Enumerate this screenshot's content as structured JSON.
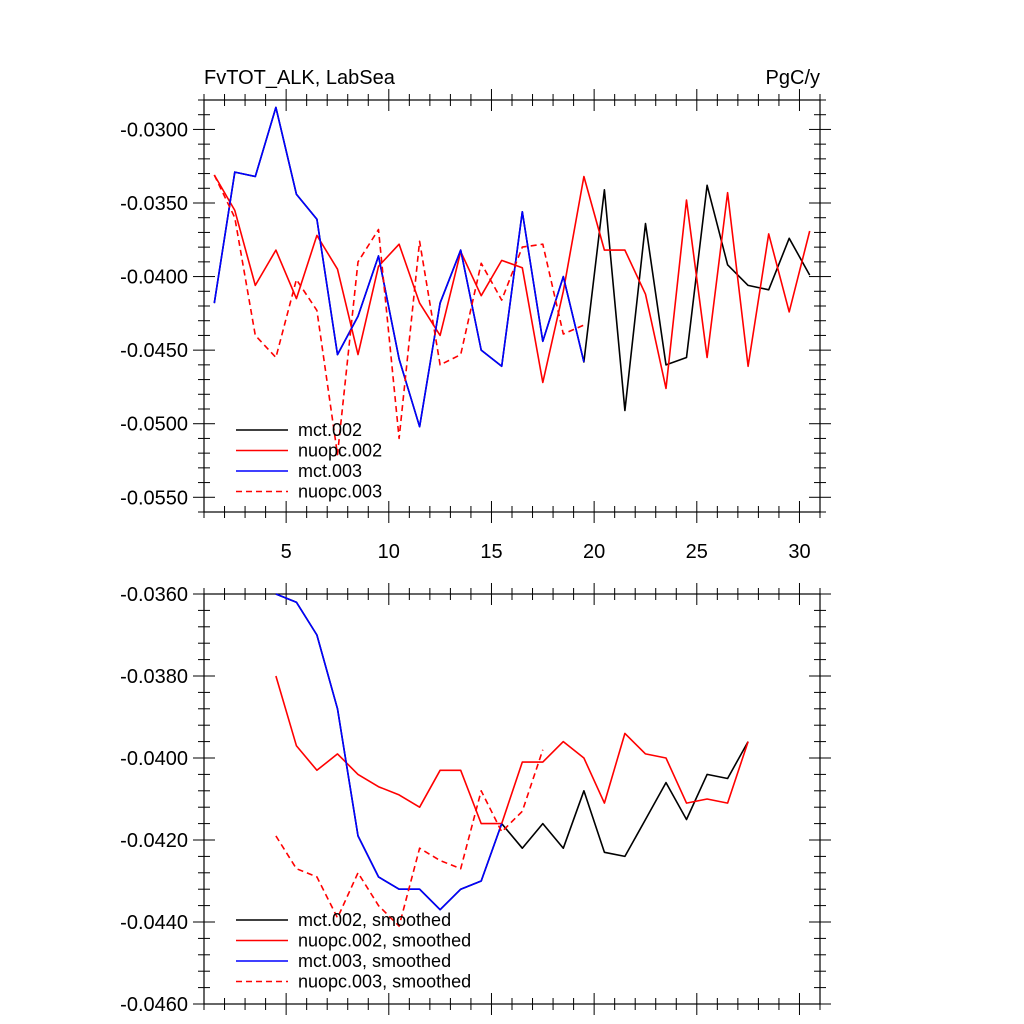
{
  "chart_data": [
    {
      "type": "line",
      "title_left": "FvTOT_ALK, LabSea",
      "title_right": "PgC/y",
      "xlim": [
        1,
        31
      ],
      "ylim": [
        -0.056,
        -0.028
      ],
      "xticks": [
        5,
        10,
        15,
        20,
        25,
        30
      ],
      "xtick_labels": [
        "5",
        "10",
        "15",
        "20",
        "25",
        "30"
      ],
      "show_x_labels": true,
      "yticks": [
        -0.03,
        -0.035,
        -0.04,
        -0.045,
        -0.05,
        -0.055
      ],
      "ytick_labels": [
        "-0.0300",
        "-0.0350",
        "-0.0400",
        "-0.0450",
        "-0.0500",
        "-0.0550"
      ],
      "legend_location": "bottom-left",
      "series": [
        {
          "name": "mct.002",
          "color": "#000000",
          "dash": "solid",
          "x": [
            1.5,
            2.5,
            3.5,
            4.5,
            5.5,
            6.5,
            7.5,
            8.5,
            9.5,
            10.5,
            11.5,
            12.5,
            13.5,
            14.5,
            15.5,
            16.5,
            17.5,
            18.5,
            19.5,
            20.5,
            21.5,
            22.5,
            23.5,
            24.5,
            25.5,
            26.5,
            27.5,
            28.5,
            29.5,
            30.5
          ],
          "values": [
            -0.0418,
            -0.0329,
            -0.0332,
            -0.0285,
            -0.0344,
            -0.0361,
            -0.0453,
            -0.0427,
            -0.0386,
            -0.0456,
            -0.0502,
            -0.0418,
            -0.0382,
            -0.045,
            -0.0461,
            -0.0356,
            -0.0444,
            -0.04,
            -0.0458,
            -0.0341,
            -0.0491,
            -0.0364,
            -0.046,
            -0.0455,
            -0.0338,
            -0.0392,
            -0.0406,
            -0.0409,
            -0.0374,
            -0.0399
          ]
        },
        {
          "name": "nuopc.002",
          "color": "#ff0000",
          "dash": "solid",
          "x": [
            1.5,
            2.5,
            3.5,
            4.5,
            5.5,
            6.5,
            7.5,
            8.5,
            9.5,
            10.5,
            11.5,
            12.5,
            13.5,
            14.5,
            15.5,
            16.5,
            17.5,
            18.5,
            19.5,
            20.5,
            21.5,
            22.5,
            23.5,
            24.5,
            25.5,
            26.5,
            27.5,
            28.5,
            29.5,
            30.5
          ],
          "values": [
            -0.0331,
            -0.0355,
            -0.0406,
            -0.0382,
            -0.0415,
            -0.0372,
            -0.0395,
            -0.0453,
            -0.0393,
            -0.0378,
            -0.0418,
            -0.044,
            -0.0383,
            -0.0413,
            -0.0389,
            -0.0394,
            -0.0472,
            -0.041,
            -0.0332,
            -0.0382,
            -0.0382,
            -0.0412,
            -0.0476,
            -0.0348,
            -0.0455,
            -0.0343,
            -0.0461,
            -0.0371,
            -0.0424,
            -0.0369
          ]
        },
        {
          "name": "mct.003",
          "color": "#0000ff",
          "dash": "solid",
          "x": [
            1.5,
            2.5,
            3.5,
            4.5,
            5.5,
            6.5,
            7.5,
            8.5,
            9.5,
            10.5,
            11.5,
            12.5,
            13.5,
            14.5,
            15.5,
            16.5,
            17.5,
            18.5,
            19.5
          ],
          "values": [
            -0.0418,
            -0.0329,
            -0.0332,
            -0.0285,
            -0.0344,
            -0.0361,
            -0.0453,
            -0.0427,
            -0.0386,
            -0.0456,
            -0.0502,
            -0.0418,
            -0.0382,
            -0.045,
            -0.0461,
            -0.0356,
            -0.0444,
            -0.04,
            -0.0458
          ]
        },
        {
          "name": "nuopc.003",
          "color": "#ff0000",
          "dash": "dashed",
          "x": [
            1.5,
            2.5,
            3.5,
            4.5,
            5.5,
            6.5,
            7.5,
            8.5,
            9.5,
            10.5,
            11.5,
            12.5,
            13.5,
            14.5,
            15.5,
            16.5,
            17.5,
            18.5,
            19.5
          ],
          "values": [
            -0.0331,
            -0.036,
            -0.044,
            -0.0455,
            -0.0402,
            -0.0423,
            -0.0521,
            -0.039,
            -0.0368,
            -0.051,
            -0.0376,
            -0.046,
            -0.0453,
            -0.0391,
            -0.0416,
            -0.038,
            -0.0378,
            -0.0439,
            -0.0433
          ]
        }
      ]
    },
    {
      "type": "line",
      "xlim": [
        1,
        31
      ],
      "ylim": [
        -0.046,
        -0.036
      ],
      "xticks": [
        5,
        10,
        15,
        20,
        25,
        30
      ],
      "show_x_labels": false,
      "yticks": [
        -0.036,
        -0.038,
        -0.04,
        -0.042,
        -0.044,
        -0.046
      ],
      "ytick_labels": [
        "-0.0360",
        "-0.0380",
        "-0.0400",
        "-0.0420",
        "-0.0440",
        "-0.0460"
      ],
      "legend_location": "bottom-left",
      "series": [
        {
          "name": "mct.002, smoothed",
          "color": "#000000",
          "dash": "solid",
          "x": [
            4.5,
            5.5,
            6.5,
            7.5,
            8.5,
            9.5,
            10.5,
            11.5,
            12.5,
            13.5,
            14.5,
            15.5,
            16.5,
            17.5,
            18.5,
            19.5,
            20.5,
            21.5,
            22.5,
            23.5,
            24.5,
            25.5,
            26.5,
            27.5
          ],
          "values": [
            -0.036,
            -0.0362,
            -0.037,
            -0.0388,
            -0.0419,
            -0.0429,
            -0.0432,
            -0.0432,
            -0.0437,
            -0.0432,
            -0.043,
            -0.0416,
            -0.0422,
            -0.0416,
            -0.0422,
            -0.0408,
            -0.0423,
            -0.0424,
            -0.0415,
            -0.0406,
            -0.0415,
            -0.0404,
            -0.0405,
            -0.0396
          ]
        },
        {
          "name": "nuopc.002, smoothed",
          "color": "#ff0000",
          "dash": "solid",
          "x": [
            4.5,
            5.5,
            6.5,
            7.5,
            8.5,
            9.5,
            10.5,
            11.5,
            12.5,
            13.5,
            14.5,
            15.5,
            16.5,
            17.5,
            18.5,
            19.5,
            20.5,
            21.5,
            22.5,
            23.5,
            24.5,
            25.5,
            26.5,
            27.5
          ],
          "values": [
            -0.038,
            -0.0397,
            -0.0403,
            -0.0399,
            -0.0404,
            -0.0407,
            -0.0409,
            -0.0412,
            -0.0403,
            -0.0403,
            -0.0416,
            -0.0416,
            -0.0401,
            -0.0401,
            -0.0396,
            -0.04,
            -0.0411,
            -0.0394,
            -0.0399,
            -0.04,
            -0.0411,
            -0.041,
            -0.0411,
            -0.0396
          ]
        },
        {
          "name": "mct.003, smoothed",
          "color": "#0000ff",
          "dash": "solid",
          "x": [
            4.5,
            5.5,
            6.5,
            7.5,
            8.5,
            9.5,
            10.5,
            11.5,
            12.5,
            13.5,
            14.5,
            15.5
          ],
          "values": [
            -0.036,
            -0.0362,
            -0.037,
            -0.0388,
            -0.0419,
            -0.0429,
            -0.0432,
            -0.0432,
            -0.0437,
            -0.0432,
            -0.043,
            -0.0416
          ]
        },
        {
          "name": "nuopc.003, smoothed",
          "color": "#ff0000",
          "dash": "dashed",
          "x": [
            4.5,
            5.5,
            6.5,
            7.5,
            8.5,
            9.5,
            10.5,
            11.5,
            12.5,
            13.5,
            14.5,
            15.5,
            16.5,
            17.5
          ],
          "values": [
            -0.0419,
            -0.0427,
            -0.0429,
            -0.0439,
            -0.0428,
            -0.0436,
            -0.0441,
            -0.0422,
            -0.0425,
            -0.0427,
            -0.0408,
            -0.0418,
            -0.0413,
            -0.0398
          ]
        }
      ]
    }
  ]
}
